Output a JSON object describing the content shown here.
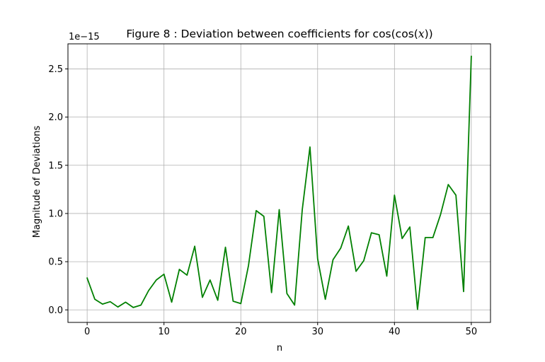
{
  "chart_data": {
    "type": "line",
    "title": "Figure 8 : Deviation between coefficients for cos(cos(x))",
    "title_prefix": "Figure 8 : Deviation between coefficients for cos(cos(",
    "title_var": "x",
    "title_suffix": "))",
    "xlabel": "n",
    "ylabel": "Magnitude of Deviations",
    "y_offset_label": "1e−15",
    "xlim": [
      -2.5,
      52.5
    ],
    "ylim": [
      -0.13,
      2.76
    ],
    "xticks": [
      0,
      10,
      20,
      30,
      40,
      50
    ],
    "xtick_labels": [
      "0",
      "10",
      "20",
      "30",
      "40",
      "50"
    ],
    "yticks": [
      0.0,
      0.5,
      1.0,
      1.5,
      2.0,
      2.5
    ],
    "ytick_labels": [
      "0.0",
      "0.5",
      "1.0",
      "1.5",
      "2.0",
      "2.5"
    ],
    "grid": true,
    "line_color": "#008000",
    "series": [
      {
        "x": [
          0,
          1,
          2,
          3,
          4,
          5,
          6,
          7,
          8,
          9,
          10,
          11,
          12,
          13,
          14,
          15,
          16,
          17,
          18,
          19,
          20,
          21,
          22,
          23,
          24,
          25,
          26,
          27,
          28,
          29,
          30,
          31,
          32,
          33,
          34,
          35,
          36,
          37,
          38,
          39,
          40,
          41,
          42,
          43,
          44,
          45,
          46,
          47,
          48,
          49,
          50
        ],
        "values": [
          0.33,
          0.11,
          0.06,
          0.085,
          0.03,
          0.08,
          0.025,
          0.05,
          0.2,
          0.31,
          0.37,
          0.08,
          0.42,
          0.36,
          0.66,
          0.13,
          0.31,
          0.1,
          0.65,
          0.09,
          0.065,
          0.46,
          1.03,
          0.97,
          0.18,
          1.04,
          0.17,
          0.05,
          1.04,
          1.69,
          0.53,
          0.11,
          0.52,
          0.64,
          0.87,
          0.4,
          0.51,
          0.8,
          0.78,
          0.35,
          1.19,
          0.74,
          0.86,
          0.005,
          0.75,
          0.75,
          0.99,
          1.3,
          1.19,
          0.19,
          2.63
        ]
      }
    ]
  }
}
